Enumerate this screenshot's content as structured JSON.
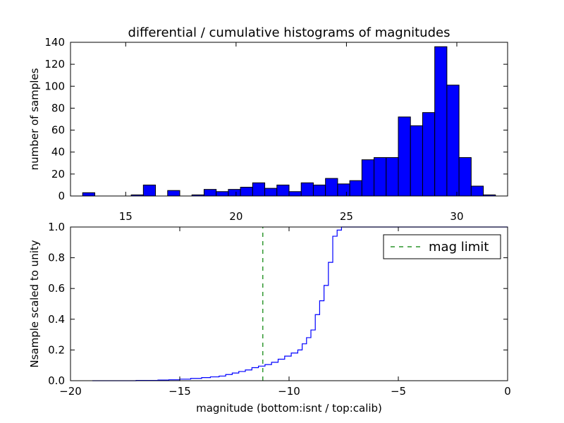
{
  "chart_data": [
    {
      "type": "bar",
      "title": "differential / cumulative histograms of magnitudes",
      "xlabel": "",
      "ylabel": "number of samples",
      "xlim": [
        12.5,
        32.3
      ],
      "ylim": [
        0,
        140
      ],
      "xticks": [
        15,
        20,
        25,
        30
      ],
      "xticks_position": "bottom",
      "yticks": [
        0,
        20,
        40,
        60,
        80,
        100,
        120,
        140
      ],
      "bar_color": "#0000ff",
      "edge_color": "#000000",
      "grid": false,
      "bin_edges": [
        12.5,
        13.05,
        13.6,
        14.15,
        14.7,
        15.25,
        15.8,
        16.35,
        16.9,
        17.45,
        18.0,
        18.55,
        19.1,
        19.65,
        20.2,
        20.75,
        21.3,
        21.85,
        22.4,
        22.95,
        23.5,
        24.05,
        24.6,
        25.15,
        25.7,
        26.25,
        26.8,
        27.35,
        27.9,
        28.45,
        29.0,
        29.55,
        30.1,
        30.65,
        31.2,
        31.75,
        32.3
      ],
      "values": [
        0,
        3,
        0,
        0,
        0,
        1,
        10,
        0,
        5,
        0,
        1,
        6,
        4,
        6,
        8,
        12,
        7,
        10,
        4,
        12,
        10,
        16,
        11,
        14,
        33,
        35,
        35,
        72,
        64,
        76,
        136,
        101,
        35,
        9,
        1,
        0
      ]
    },
    {
      "type": "line",
      "xlabel": "magnitude (bottom:isnt / top:calib)",
      "ylabel": "Nsample scaled to unity",
      "xlim": [
        -20,
        0
      ],
      "ylim": [
        0,
        1.0
      ],
      "xticks": [
        -20,
        -15,
        -10,
        -5,
        0
      ],
      "yticks": [
        0.0,
        0.2,
        0.4,
        0.6,
        0.8,
        1.0
      ],
      "grid": false,
      "series": [
        {
          "name": "",
          "style": "steps",
          "color": "#0000ff",
          "x": [
            -19.0,
            -17.0,
            -16.0,
            -15.5,
            -15.0,
            -14.5,
            -14.0,
            -13.6,
            -13.2,
            -12.9,
            -12.6,
            -12.3,
            -12.0,
            -11.7,
            -11.4,
            -11.1,
            -10.8,
            -10.5,
            -10.2,
            -9.9,
            -9.6,
            -9.4,
            -9.2,
            -9.0,
            -8.8,
            -8.6,
            -8.4,
            -8.2,
            -8.0,
            -7.8,
            -7.6
          ],
          "y": [
            0.0,
            0.002,
            0.004,
            0.006,
            0.01,
            0.015,
            0.02,
            0.025,
            0.03,
            0.04,
            0.05,
            0.06,
            0.07,
            0.085,
            0.095,
            0.105,
            0.12,
            0.14,
            0.16,
            0.18,
            0.2,
            0.24,
            0.28,
            0.33,
            0.43,
            0.52,
            0.62,
            0.77,
            0.94,
            0.98,
            1.0
          ]
        },
        {
          "name": "mag limit",
          "style": "vline-dashed",
          "color": "#008000",
          "x": [
            -11.2,
            -11.2
          ],
          "y": [
            0,
            1.0
          ]
        }
      ],
      "legend": {
        "position": "top-right",
        "entries": [
          "mag limit"
        ]
      }
    }
  ]
}
